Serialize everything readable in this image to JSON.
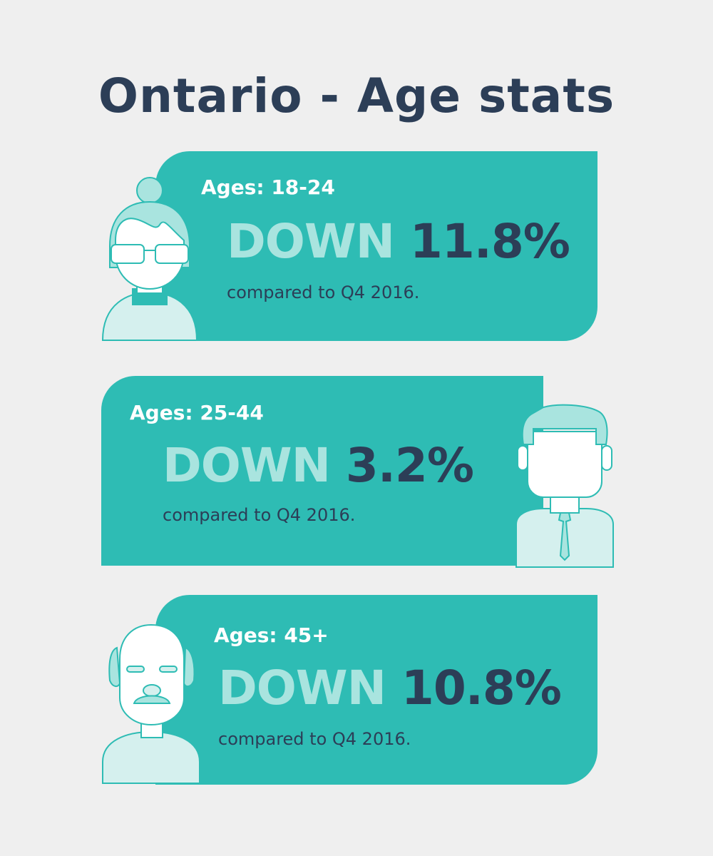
{
  "title": "Ontario - Age stats",
  "cards": [
    {
      "label": "Ages: 18-24",
      "trend": "DOWN",
      "value": "11.8%",
      "note": "compared to Q4 2016.",
      "avatar_icon": "young-woman-glasses-icon"
    },
    {
      "label": "Ages: 25-44",
      "trend": "DOWN",
      "value": "3.2%",
      "note": "compared to Q4 2016.",
      "avatar_icon": "businessman-tie-icon"
    },
    {
      "label": "Ages: 45+",
      "trend": "DOWN",
      "value": "10.8%",
      "note": "compared to Q4 2016.",
      "avatar_icon": "older-man-mustache-icon"
    }
  ],
  "colors": {
    "background": "#efefef",
    "card": "#2ebcb4",
    "title": "#2c3e57",
    "trend": "#a9e4df",
    "avatar_fill": "#d5f0ee",
    "avatar_hair": "#a9e4df"
  }
}
